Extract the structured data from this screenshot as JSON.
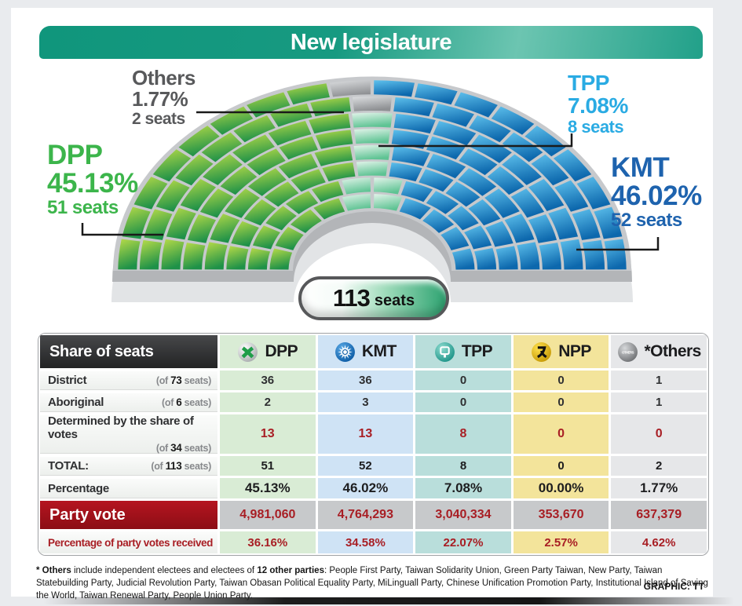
{
  "title": "New legislature",
  "page": {
    "credit": "GRAPHIC: TT"
  },
  "chart": {
    "total_label": {
      "number": "113",
      "unit": "seats"
    },
    "callout_labels": {
      "dpp": {
        "name": "DPP",
        "percent": "45.13%",
        "seats": "51 seats",
        "color": "#3cb54b"
      },
      "kmt": {
        "name": "KMT",
        "percent": "46.02%",
        "seats": "52 seats",
        "color": "#1e63ae"
      },
      "tpp": {
        "name": "TPP",
        "percent": "7.08%",
        "seats": "8 seats",
        "color": "#2aabe3"
      },
      "others": {
        "name": "Others",
        "percent": "1.77%",
        "seats": "2 seats",
        "color": "#58595b"
      }
    }
  },
  "chart_data": {
    "type": "pie",
    "variant": "parliament-hemicycle",
    "title": "New legislature",
    "total_seats": 113,
    "parties": [
      {
        "code": "D",
        "name": "DPP",
        "seats": 51,
        "percent": 45.13,
        "gradient": [
          "#b9dc48",
          "#1e9148"
        ]
      },
      {
        "code": "K",
        "name": "KMT",
        "seats": 52,
        "percent": 46.02,
        "gradient": [
          "#5ec1ed",
          "#0d68ad"
        ]
      },
      {
        "code": "T",
        "name": "TPP",
        "seats": 8,
        "percent": 7.08,
        "gradient": [
          "#e2f4ea",
          "#5ec393"
        ]
      },
      {
        "code": "O",
        "name": "Others",
        "seats": 2,
        "percent": 1.77,
        "gradient": [
          "#dcdee0",
          "#8e9093"
        ]
      }
    ],
    "seat_rows": [
      "DDDDTTKKKK",
      "DDDDDTTKKKKK",
      "DDDDDDTKKKKKK",
      "DDDDDDTKKKKKK",
      "DDDDDDDTKKKKKKK",
      "DDDDDDDTKKKKKKK",
      "DDDDDDDDOKKKKKKKK",
      "DDDDDDDDOKKKKKKKKK"
    ]
  },
  "table": {
    "header_label": "Share of seats",
    "columns": [
      {
        "name": "DPP",
        "tint": "#d9ecd5"
      },
      {
        "name": "KMT",
        "tint": "#cfe3f5"
      },
      {
        "name": "TPP",
        "tint": "#b9dedb"
      },
      {
        "name": "NPP",
        "tint": "#f3e49b"
      },
      {
        "name": "*Others",
        "tint": "#e6e7e9"
      }
    ],
    "rows": [
      {
        "label": "District",
        "sub": [
          "(of ",
          "73",
          " seats)"
        ],
        "values": [
          "36",
          "36",
          "0",
          "0",
          "1"
        ]
      },
      {
        "label": "Aboriginal",
        "sub": [
          "(of ",
          "6",
          " seats)"
        ],
        "values": [
          "2",
          "3",
          "0",
          "0",
          "1"
        ]
      },
      {
        "label": "Determined by the share of votes",
        "sub": [
          "(of ",
          "34",
          " seats)"
        ],
        "values": [
          "13",
          "13",
          "8",
          "0",
          "0"
        ]
      },
      {
        "label": "TOTAL:",
        "sub": [
          "(of ",
          "113",
          " seats)"
        ],
        "values": [
          "51",
          "52",
          "8",
          "0",
          "2"
        ]
      },
      {
        "label": "Percentage",
        "values": [
          "45.13%",
          "46.02%",
          "7.08%",
          "00.00%",
          "1.77%"
        ]
      },
      {
        "label": "Party vote",
        "values": [
          "4,981,060",
          "4,764,293",
          "3,040,334",
          "353,670",
          "637,379"
        ]
      },
      {
        "label": "Percentage of party votes received",
        "values": [
          "36.16%",
          "34.58%",
          "22.07%",
          "2.57%",
          "4.62%"
        ]
      }
    ]
  },
  "footnote": {
    "bold1": "* Others",
    "text1": " include independent electees and electees of ",
    "bold2": "12 other parties",
    "text2": ": People First Party, Taiwan Solidarity Union, Green Party Taiwan, New Party, Taiwan Statebuilding Party, Judicial Revolution Party, Taiwan Obasan Political Equality Party, MiLinguall Party, Chinese Unification Promotion Party, Institutional Island of Saving the World, Taiwan Renewal Party, People Union Party."
  }
}
